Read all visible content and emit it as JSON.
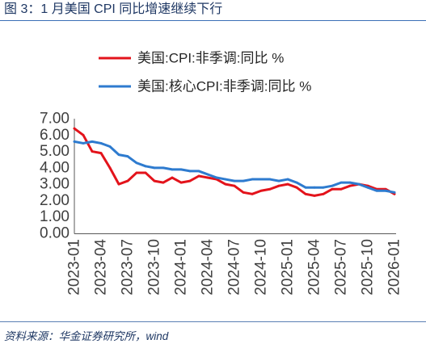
{
  "chart_data": {
    "type": "line",
    "title": "图 3：1 月美国 CPI 同比增速继续下行",
    "x": [
      "2023-01",
      "2023-02",
      "2023-03",
      "2023-04",
      "2023-05",
      "2023-06",
      "2023-07",
      "2023-08",
      "2023-09",
      "2023-10",
      "2023-11",
      "2023-12",
      "2024-01",
      "2024-02",
      "2024-03",
      "2024-04",
      "2024-05",
      "2024-06",
      "2024-07",
      "2024-08",
      "2024-09",
      "2024-10",
      "2024-11",
      "2024-12",
      "2025-01",
      "2025-02",
      "2025-03",
      "2025-04",
      "2025-05",
      "2025-06",
      "2025-07",
      "2025-08",
      "2025-09",
      "2025-10",
      "2025-11",
      "2025-12",
      "2026-01"
    ],
    "xticks": [
      "2023-01",
      "2023-04",
      "2023-07",
      "2023-10",
      "2024-01",
      "2024-04",
      "2024-07",
      "2024-10",
      "2025-01",
      "2025-04",
      "2025-07",
      "2025-10",
      "2026-01"
    ],
    "yticks": [
      "0.00",
      "1.00",
      "2.00",
      "3.00",
      "4.00",
      "5.00",
      "6.00",
      "7.00"
    ],
    "ylim": [
      0,
      7
    ],
    "grid": false,
    "legend": "top",
    "series": [
      {
        "name": "美国:CPI:非季调:同比 %",
        "color": "#e3131b",
        "values": [
          6.4,
          6.0,
          5.0,
          4.9,
          4.0,
          3.0,
          3.2,
          3.7,
          3.7,
          3.2,
          3.1,
          3.4,
          3.1,
          3.2,
          3.5,
          3.4,
          3.3,
          3.0,
          2.9,
          2.5,
          2.4,
          2.6,
          2.7,
          2.9,
          3.0,
          2.8,
          2.4,
          2.3,
          2.4,
          2.7,
          2.7,
          2.9,
          3.0,
          2.9,
          2.7,
          2.7,
          2.4
        ]
      },
      {
        "name": "美国:核心CPI:非季调:同比 %",
        "color": "#2e7bcf",
        "values": [
          5.6,
          5.5,
          5.6,
          5.5,
          5.3,
          4.8,
          4.7,
          4.3,
          4.1,
          4.0,
          4.0,
          3.9,
          3.9,
          3.8,
          3.8,
          3.6,
          3.4,
          3.3,
          3.2,
          3.2,
          3.3,
          3.3,
          3.3,
          3.2,
          3.3,
          3.1,
          2.8,
          2.8,
          2.8,
          2.9,
          3.1,
          3.1,
          3.0,
          2.8,
          2.6,
          2.6,
          2.5
        ]
      }
    ]
  },
  "source": "资料来源：华金证券研究所，wind"
}
